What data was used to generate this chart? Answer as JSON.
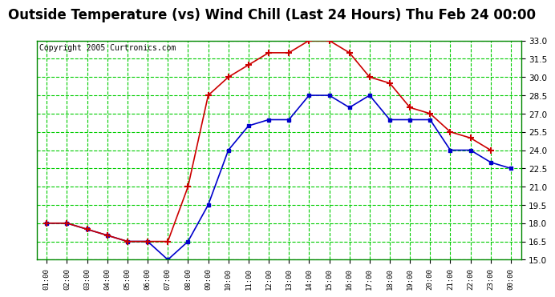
{
  "title": "Outside Temperature (vs) Wind Chill (Last 24 Hours) Thu Feb 24 00:00",
  "copyright": "Copyright 2005 Curtronics.com",
  "x_labels": [
    "01:00",
    "02:00",
    "03:00",
    "04:00",
    "05:00",
    "06:00",
    "07:00",
    "08:00",
    "09:00",
    "10:00",
    "11:00",
    "12:00",
    "13:00",
    "14:00",
    "15:00",
    "16:00",
    "17:00",
    "18:00",
    "19:00",
    "20:00",
    "21:00",
    "22:00",
    "23:00",
    "00:00"
  ],
  "temp_data": [
    18.0,
    18.0,
    17.5,
    17.0,
    16.5,
    16.5,
    15.0,
    16.5,
    19.5,
    24.0,
    26.0,
    26.5,
    26.5,
    28.5,
    28.5,
    27.5,
    28.5,
    26.5,
    26.5,
    26.5,
    24.0,
    24.0,
    23.0,
    22.5
  ],
  "wind_chill_data": [
    18.0,
    18.0,
    17.5,
    17.0,
    16.5,
    16.5,
    16.5,
    21.0,
    28.5,
    30.0,
    31.0,
    32.0,
    32.0,
    33.0,
    33.0,
    32.0,
    30.0,
    29.5,
    27.5,
    27.0,
    25.5,
    25.0,
    24.0,
    null
  ],
  "ylim": [
    15.0,
    33.0
  ],
  "yticks": [
    15.0,
    16.5,
    18.0,
    19.5,
    21.0,
    22.5,
    24.0,
    25.5,
    27.0,
    28.5,
    30.0,
    31.5,
    33.0
  ],
  "temp_color": "#0000cc",
  "wind_color": "#cc0000",
  "plot_bg": "#ffffff",
  "outer_bg": "#ffffff",
  "grid_color": "#00cc00",
  "title_color": "#000000",
  "title_fontsize": 12,
  "copyright_fontsize": 7,
  "border_color": "#008800"
}
